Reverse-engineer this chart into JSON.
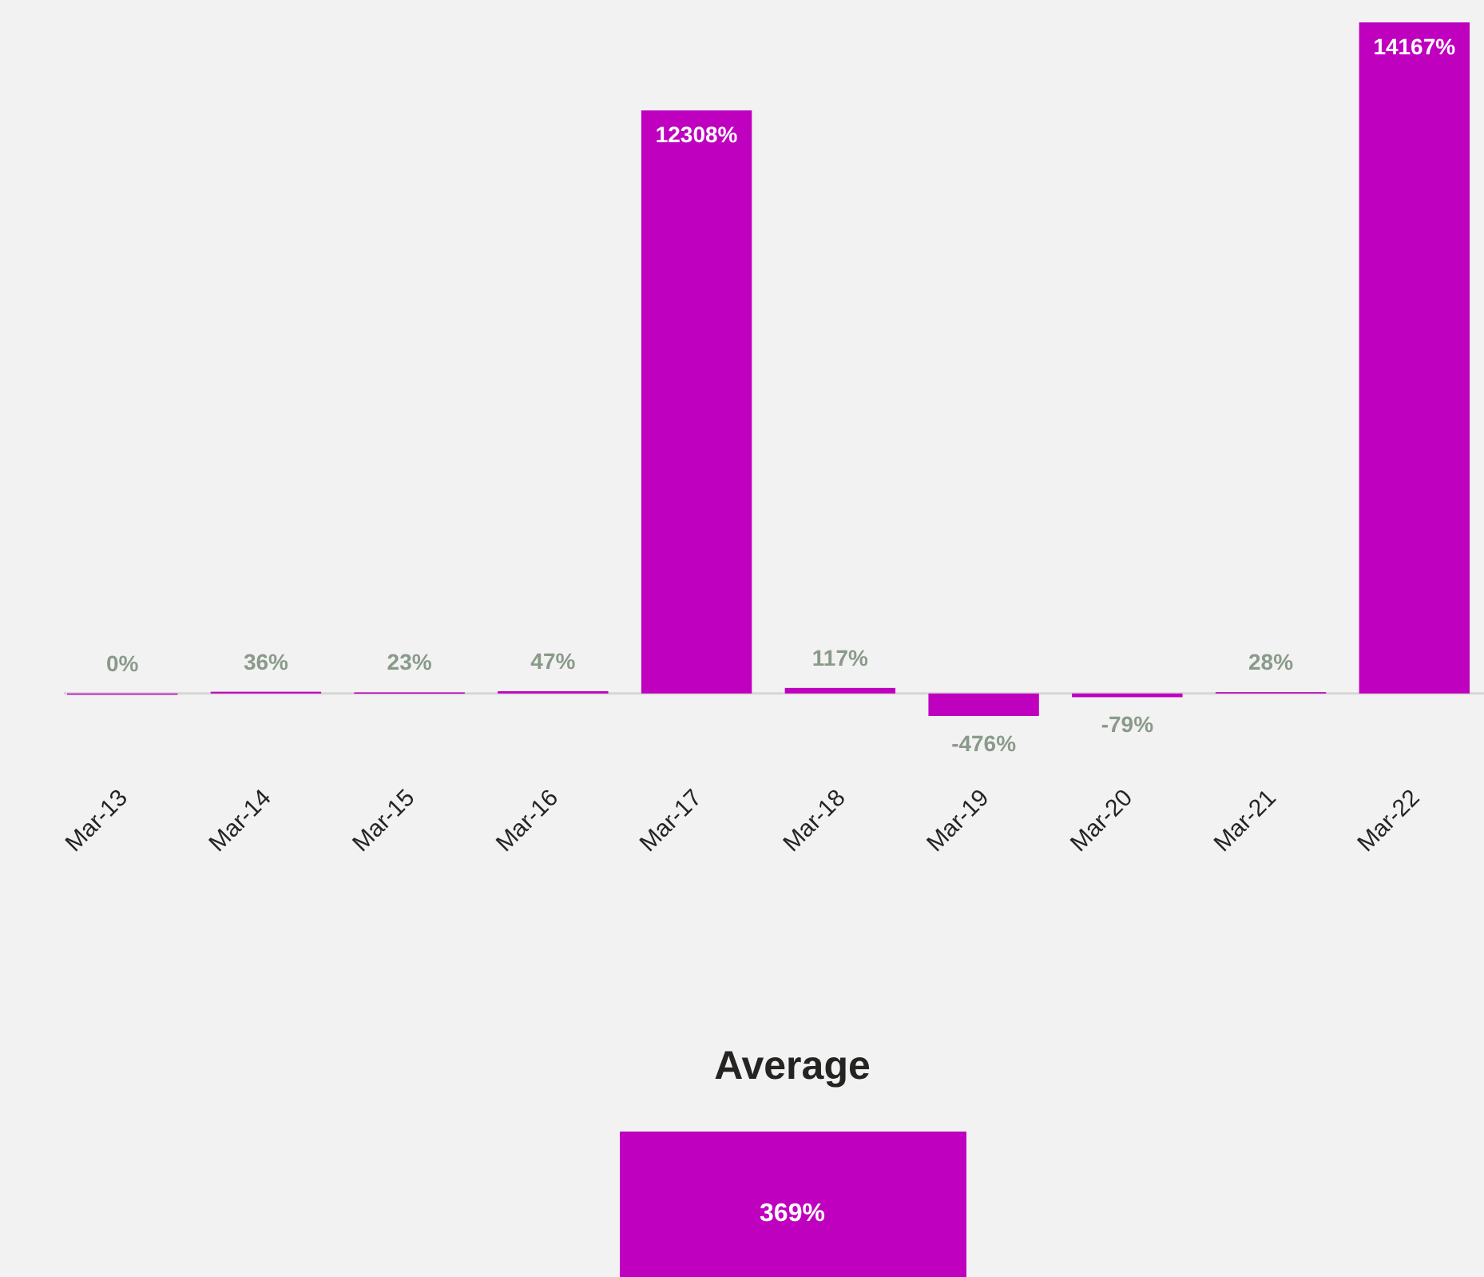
{
  "chart_data": [
    {
      "type": "bar",
      "categories": [
        "Mar-13",
        "Mar-14",
        "Mar-15",
        "Mar-16",
        "Mar-17",
        "Mar-18",
        "Mar-19",
        "Mar-20",
        "Mar-21",
        "Mar-22"
      ],
      "values": [
        0,
        36,
        23,
        47,
        12308,
        117,
        -476,
        -79,
        28,
        14167
      ],
      "value_labels": [
        "0%",
        "36%",
        "23%",
        "47%",
        "12308%",
        "117%",
        "-476%",
        "-79%",
        "28%",
        "14167%"
      ],
      "color": "#bf00bf",
      "tick_labels": "x"
    },
    {
      "type": "other",
      "title": "Average",
      "annotations": [
        "369%"
      ]
    }
  ]
}
